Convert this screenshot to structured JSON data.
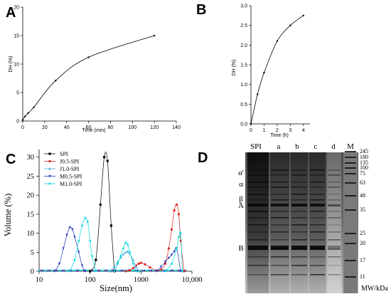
{
  "chart_data": [
    {
      "panel": "A",
      "type": "line",
      "xlabel": "Time (min)",
      "ylabel": "DH (%)",
      "xlim": [
        0,
        140
      ],
      "ylim": [
        0,
        20
      ],
      "xticks": [
        "0",
        "20",
        "40",
        "60",
        "80",
        "100",
        "120",
        "140"
      ],
      "yticks": [
        "0",
        "5",
        "10",
        "15",
        "20"
      ],
      "x": [
        0,
        2,
        5,
        10,
        30,
        60,
        120
      ],
      "y": [
        0.2,
        0.8,
        1.4,
        2.4,
        7.1,
        11.2,
        15.0
      ]
    },
    {
      "panel": "B",
      "type": "line",
      "xlabel": "Time (h)",
      "ylabel": "DH (%)",
      "xlim": [
        0,
        4.5
      ],
      "ylim": [
        0,
        3.0
      ],
      "xticks": [
        "0",
        "1",
        "2",
        "3",
        "4"
      ],
      "yticks": [
        "0.0",
        "0.5",
        "1.0",
        "1.5",
        "2.0",
        "2.5",
        "3.0"
      ],
      "x": [
        0,
        0.5,
        1,
        2,
        3,
        4
      ],
      "y": [
        0.0,
        0.75,
        1.3,
        2.1,
        2.5,
        2.75
      ]
    },
    {
      "panel": "C",
      "type": "line",
      "xscale": "log",
      "xlabel": "Size(nm)",
      "ylabel": "Volume (%)",
      "xlim": [
        10,
        10000
      ],
      "ylim": [
        0,
        32
      ],
      "xticks": [
        "10",
        "100",
        "1000",
        "10,000"
      ],
      "yticks": [
        "0",
        "5",
        "10",
        "15",
        "20",
        "25",
        "30"
      ],
      "legend": "top-left",
      "series": [
        {
          "name": "SPI",
          "color": "#000000",
          "marker": "square",
          "x": [
            100,
            130,
            160,
            190,
            220,
            260,
            300
          ],
          "y": [
            0,
            3,
            17.5,
            30,
            29,
            12,
            0
          ]
        },
        {
          "name": "J0.5-SPI",
          "color": "#e02020",
          "marker": "circle",
          "x": [
            500,
            600,
            700,
            800,
            900,
            1000,
            1200,
            1500,
            2000,
            2500,
            3000,
            3500,
            4000,
            4500,
            5000,
            5500,
            6000,
            7000
          ],
          "y": [
            0,
            0.3,
            0.8,
            1.5,
            2,
            2.2,
            1.8,
            1.0,
            0.2,
            0.5,
            2,
            6,
            11,
            16,
            17.5,
            15,
            8,
            0
          ]
        },
        {
          "name": "J1.0-SPI",
          "color": "#4aa8d8",
          "marker": "triangle",
          "x": [
            250,
            300,
            350,
            400,
            450,
            500,
            550,
            600,
            700,
            800,
            900
          ],
          "y": [
            0,
            1.2,
            2.5,
            3.6,
            4.5,
            5.0,
            5.2,
            4.6,
            3.0,
            1.2,
            0
          ]
        },
        {
          "name": "M0.5-SPI",
          "color": "#2030b8",
          "marker": "triangle-down",
          "x": [
            20,
            25,
            30,
            35,
            40,
            45,
            50,
            60,
            70,
            80,
            2000,
            2500,
            3000,
            3500,
            4000,
            4500,
            5000,
            6000
          ],
          "y": [
            0,
            2,
            6,
            9.5,
            11.5,
            11,
            9,
            5,
            1.5,
            0,
            0,
            1.2,
            2.5,
            3.5,
            4.3,
            5.2,
            6,
            0
          ]
        },
        {
          "name": "M1.0-SPI",
          "color": "#00d8e0",
          "marker": "diamond",
          "x": [
            40,
            50,
            60,
            70,
            80,
            90,
            100,
            110,
            130,
            300,
            350,
            400,
            450,
            500,
            550,
            600,
            700,
            800,
            3000,
            4000,
            5000,
            5500,
            6000,
            6500
          ],
          "y": [
            0,
            3,
            8,
            12,
            14,
            13,
            8,
            4,
            0,
            0,
            2,
            4,
            6,
            7.5,
            7,
            5,
            2,
            0,
            0,
            2,
            6,
            9,
            10,
            0
          ]
        }
      ]
    }
  ],
  "panels": {
    "A": {
      "letter": "A"
    },
    "B": {
      "letter": "B"
    },
    "C": {
      "letter": "C"
    },
    "D": {
      "letter": "D",
      "lanes": [
        "SPI",
        "a",
        "b",
        "c",
        "d",
        "M"
      ],
      "band_labels": [
        "α'",
        "α",
        "β",
        "A",
        "B"
      ],
      "markers": [
        "245",
        "180",
        "135",
        "100",
        "75",
        "63",
        "48",
        "35",
        "25",
        "20",
        "17",
        "11"
      ],
      "unit_label": "MW/kDa"
    }
  }
}
